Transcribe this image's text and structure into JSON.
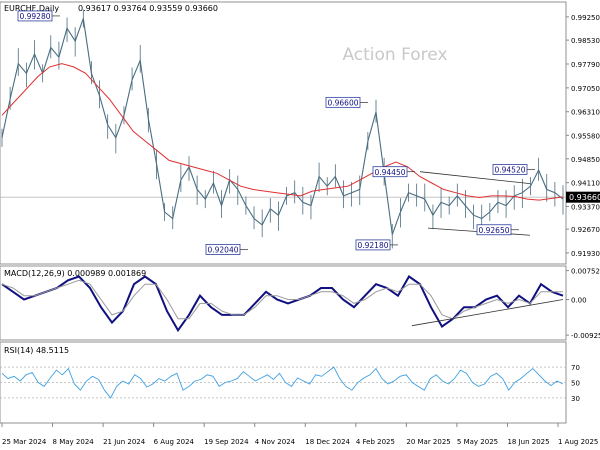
{
  "chart_data": [
    {
      "type": "candlestick",
      "title": "EURCHF,Daily",
      "ohlc_readout": "0.93617 0.93764 0.93559 0.93660",
      "watermark": "Action Forex",
      "current_price": "0.93660",
      "ylim": [
        0.9165,
        0.9965
      ],
      "y_ticks": [
        "0.99250",
        "0.98530",
        "0.97790",
        "0.97050",
        "0.96310",
        "0.95580",
        "0.94850",
        "0.94110",
        "0.93370",
        "0.92670",
        "0.91930"
      ],
      "x_ticks": [
        "25 Mar 2024",
        "8 May 2024",
        "21 Jun 2024",
        "6 Aug 2024",
        "19 Sep 2024",
        "4 Nov 2024",
        "18 Dec 2024",
        "4 Feb 2025",
        "20 Mar 2025",
        "5 May 2025",
        "18 Jun 2025",
        "1 Aug 2025"
      ],
      "annotations": [
        {
          "label": "0.99280",
          "value": 0.9928
        },
        {
          "label": "0.96600",
          "value": 0.966
        },
        {
          "label": "0.94450",
          "value": 0.9445
        },
        {
          "label": "0.94520",
          "value": 0.9452
        },
        {
          "label": "0.92040",
          "value": 0.9204
        },
        {
          "label": "0.92180",
          "value": 0.9218
        },
        {
          "label": "0.92650",
          "value": 0.9265
        }
      ],
      "series": [
        {
          "name": "",
          "kind": "price",
          "color": "#4a6d80",
          "values": [
            0.955,
            0.967,
            0.978,
            0.975,
            0.981,
            0.975,
            0.983,
            0.98,
            0.989,
            0.985,
            0.992,
            0.975,
            0.968,
            0.959,
            0.955,
            0.962,
            0.973,
            0.979,
            0.961,
            0.947,
            0.932,
            0.93,
            0.942,
            0.946,
            0.939,
            0.936,
            0.941,
            0.934,
            0.942,
            0.939,
            0.934,
            0.93,
            0.928,
            0.933,
            0.931,
            0.937,
            0.938,
            0.935,
            0.934,
            0.943,
            0.94,
            0.943,
            0.937,
            0.938,
            0.939,
            0.954,
            0.963,
            0.944,
            0.925,
            0.932,
            0.938,
            0.937,
            0.936,
            0.931,
            0.935,
            0.934,
            0.937,
            0.934,
            0.931,
            0.93,
            0.932,
            0.935,
            0.934,
            0.937,
            0.938,
            0.94,
            0.945,
            0.939,
            0.938,
            0.936
          ]
        },
        {
          "name": "",
          "kind": "ma",
          "color": "#e03030",
          "values": [
            0.962,
            0.966,
            0.97,
            0.974,
            0.977,
            0.978,
            0.977,
            0.975,
            0.971,
            0.967,
            0.962,
            0.957,
            0.954,
            0.951,
            0.948,
            0.947,
            0.946,
            0.945,
            0.944,
            0.942,
            0.94,
            0.939,
            0.9385,
            0.938,
            0.9375,
            0.937,
            0.9385,
            0.939,
            0.9395,
            0.94,
            0.942,
            0.944,
            0.946,
            0.9475,
            0.946,
            0.943,
            0.941,
            0.939,
            0.938,
            0.937,
            0.9365,
            0.937,
            0.937,
            0.9368,
            0.936,
            0.9357,
            0.9362,
            0.9367
          ]
        }
      ],
      "channel": {
        "upper": [
          0.9445,
          0.9408
        ],
        "lower": [
          0.927,
          0.9248
        ]
      }
    },
    {
      "type": "line",
      "title": "MACD(12,26,9) 0.000989 0.001869",
      "ylim": [
        -0.01,
        0.0082
      ],
      "y_ticks": [
        "0.007525",
        "0.00",
        "-0.009252"
      ],
      "series": [
        {
          "name": "",
          "kind": "macd",
          "color": "#101080",
          "values": [
            0.004,
            0.002,
            0.0,
            0.001,
            0.002,
            0.003,
            0.005,
            0.006,
            0.003,
            -0.002,
            -0.006,
            -0.003,
            0.004,
            0.006,
            0.004,
            -0.003,
            -0.008,
            -0.004,
            0.001,
            -0.002,
            -0.004,
            -0.004,
            -0.004,
            -0.001,
            0.002,
            0.0,
            -0.001,
            0.0,
            0.001,
            0.003,
            0.003,
            0.0,
            -0.002,
            0.001,
            0.004,
            0.003,
            0.001,
            0.006,
            0.004,
            -0.002,
            -0.007,
            -0.005,
            -0.002,
            -0.002,
            0.0,
            0.001,
            -0.002,
            0.001,
            -0.001,
            0.004,
            0.002,
            0.001
          ]
        },
        {
          "name": "",
          "kind": "signal",
          "color": "#9a9a9a",
          "values": [
            0.004,
            0.003,
            0.001,
            0.001,
            0.002,
            0.003,
            0.004,
            0.005,
            0.004,
            0.0,
            -0.004,
            -0.003,
            0.001,
            0.004,
            0.004,
            0.0,
            -0.005,
            -0.005,
            -0.001,
            -0.001,
            -0.003,
            -0.004,
            -0.004,
            -0.002,
            0.001,
            0.001,
            0.0,
            0.0,
            0.001,
            0.002,
            0.002,
            0.001,
            -0.001,
            0.0,
            0.002,
            0.003,
            0.002,
            0.004,
            0.004,
            0.001,
            -0.004,
            -0.005,
            -0.003,
            -0.002,
            -0.001,
            0.0,
            -0.001,
            0.0,
            -0.001,
            0.002,
            0.002,
            0.002
          ]
        }
      ],
      "trendline": [
        -0.0068,
        0.0
      ]
    },
    {
      "type": "line",
      "title": "RSI(14) 48.5115",
      "ylim": [
        0,
        100
      ],
      "y_ticks": [
        "70",
        "50",
        "30"
      ],
      "series": [
        {
          "name": "",
          "kind": "rsi",
          "color": "#3fa0e0",
          "values": [
            62,
            55,
            58,
            52,
            60,
            63,
            50,
            45,
            56,
            66,
            60,
            68,
            48,
            40,
            52,
            58,
            54,
            40,
            30,
            45,
            52,
            48,
            60,
            55,
            44,
            48,
            55,
            52,
            58,
            62,
            40,
            45,
            52,
            54,
            60,
            58,
            45,
            50,
            52,
            55,
            64,
            58,
            52,
            56,
            60,
            54,
            62,
            50,
            45,
            56,
            52,
            48,
            60,
            58,
            64,
            70,
            55,
            45,
            40,
            50,
            56,
            60,
            68,
            55,
            48,
            52,
            58,
            60,
            50,
            45,
            40,
            55,
            60,
            52,
            48,
            55,
            66,
            62,
            50,
            45,
            48,
            58,
            62,
            55,
            40,
            50,
            55,
            62,
            68,
            60,
            52,
            46,
            52,
            48
          ]
        }
      ]
    }
  ]
}
